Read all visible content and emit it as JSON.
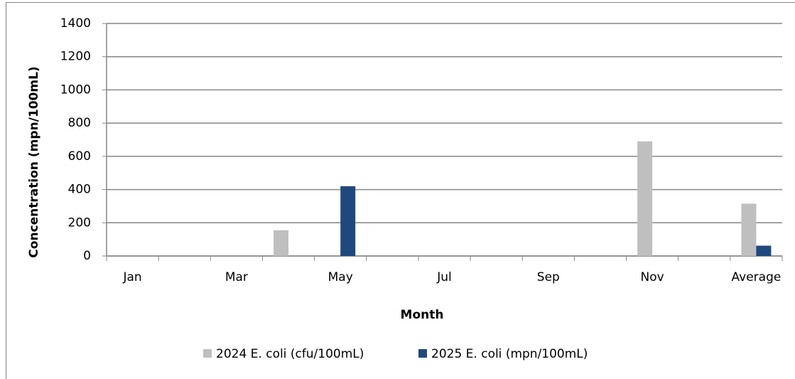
{
  "chart_data": {
    "type": "bar",
    "x_label": "Month",
    "y_label": "Concentration (mpn/100mL)",
    "categories": [
      "Jan",
      null,
      "Mar",
      null,
      "May",
      null,
      "Jul",
      null,
      "Sep",
      null,
      "Nov",
      null,
      "Average"
    ],
    "series": [
      {
        "name": "2024 E. coli (cfu/100mL)",
        "color": "#bfbfbf",
        "values": [
          null,
          null,
          null,
          155,
          null,
          null,
          null,
          null,
          null,
          null,
          690,
          null,
          315
        ]
      },
      {
        "name": "2025 E. coli (mpn/100mL)",
        "color": "#1f497d",
        "values": [
          null,
          null,
          null,
          null,
          420,
          null,
          null,
          null,
          null,
          null,
          null,
          null,
          62
        ]
      }
    ],
    "ylim": [
      0,
      1400
    ],
    "yticks": [
      0,
      200,
      400,
      600,
      800,
      1000,
      1200,
      1400
    ],
    "grid": true,
    "legend": "bottom"
  }
}
